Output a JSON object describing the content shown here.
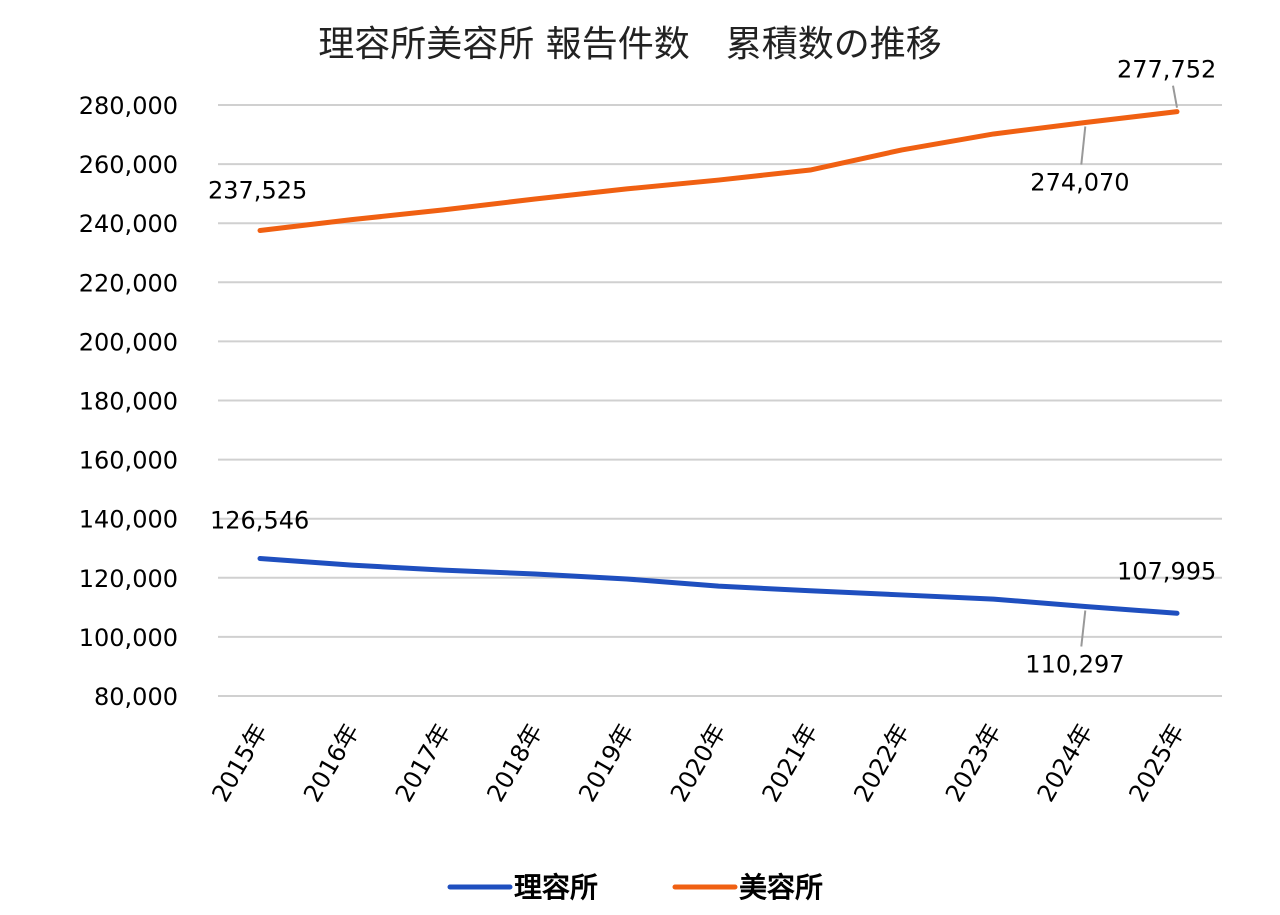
{
  "chart_data": {
    "type": "line",
    "title": "理容所美容所 報告件数　累積数の推移",
    "xlabel": "",
    "ylabel": "",
    "categories": [
      "2015年",
      "2016年",
      "2017年",
      "2018年",
      "2019年",
      "2020年",
      "2021年",
      "2022年",
      "2023年",
      "2024年",
      "2025年"
    ],
    "series": [
      {
        "name": "理容所",
        "color": "#1f4fbf",
        "values": [
          126546,
          124300,
          122600,
          121300,
          119600,
          117200,
          115600,
          114200,
          112800,
          110297,
          107995
        ],
        "labeled_points": [
          {
            "index": 0,
            "label": "126,546"
          },
          {
            "index": 9,
            "label": "110,297"
          },
          {
            "index": 10,
            "label": "107,995"
          }
        ]
      },
      {
        "name": "美容所",
        "color": "#f06012",
        "values": [
          237525,
          241200,
          244500,
          248200,
          251600,
          254600,
          258000,
          264800,
          270200,
          274070,
          277752
        ],
        "labeled_points": [
          {
            "index": 0,
            "label": "237,525"
          },
          {
            "index": 9,
            "label": "274,070"
          },
          {
            "index": 10,
            "label": "277,752"
          }
        ]
      }
    ],
    "ylim": [
      80000,
      280000
    ],
    "yticks": [
      80000,
      100000,
      120000,
      140000,
      160000,
      180000,
      200000,
      220000,
      240000,
      260000,
      280000
    ],
    "ytick_labels": [
      "80,000",
      "100,000",
      "120,000",
      "140,000",
      "160,000",
      "180,000",
      "200,000",
      "220,000",
      "240,000",
      "260,000",
      "280,000"
    ],
    "grid": true,
    "legend_position": "bottom"
  }
}
